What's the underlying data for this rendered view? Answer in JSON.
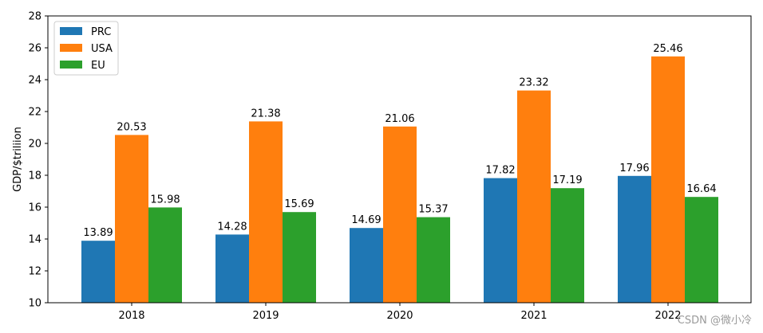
{
  "chart_data": {
    "type": "bar",
    "categories": [
      "2018",
      "2019",
      "2020",
      "2021",
      "2022"
    ],
    "series": [
      {
        "name": "PRC",
        "color": "#1f77b4",
        "values": [
          13.89,
          14.28,
          14.69,
          17.82,
          17.96
        ]
      },
      {
        "name": "USA",
        "color": "#ff7f0e",
        "values": [
          20.53,
          21.38,
          21.06,
          23.32,
          25.46
        ]
      },
      {
        "name": "EU",
        "color": "#2ca02c",
        "values": [
          15.98,
          15.69,
          15.37,
          17.19,
          16.64
        ]
      }
    ],
    "ylabel": "GDP/$triliion",
    "ylim": [
      10,
      28
    ],
    "yticks": [
      10,
      12,
      14,
      16,
      18,
      20,
      22,
      24,
      26,
      28
    ],
    "legend_position": "top-left",
    "grid": false
  },
  "watermark": "CSDN @微小冷"
}
